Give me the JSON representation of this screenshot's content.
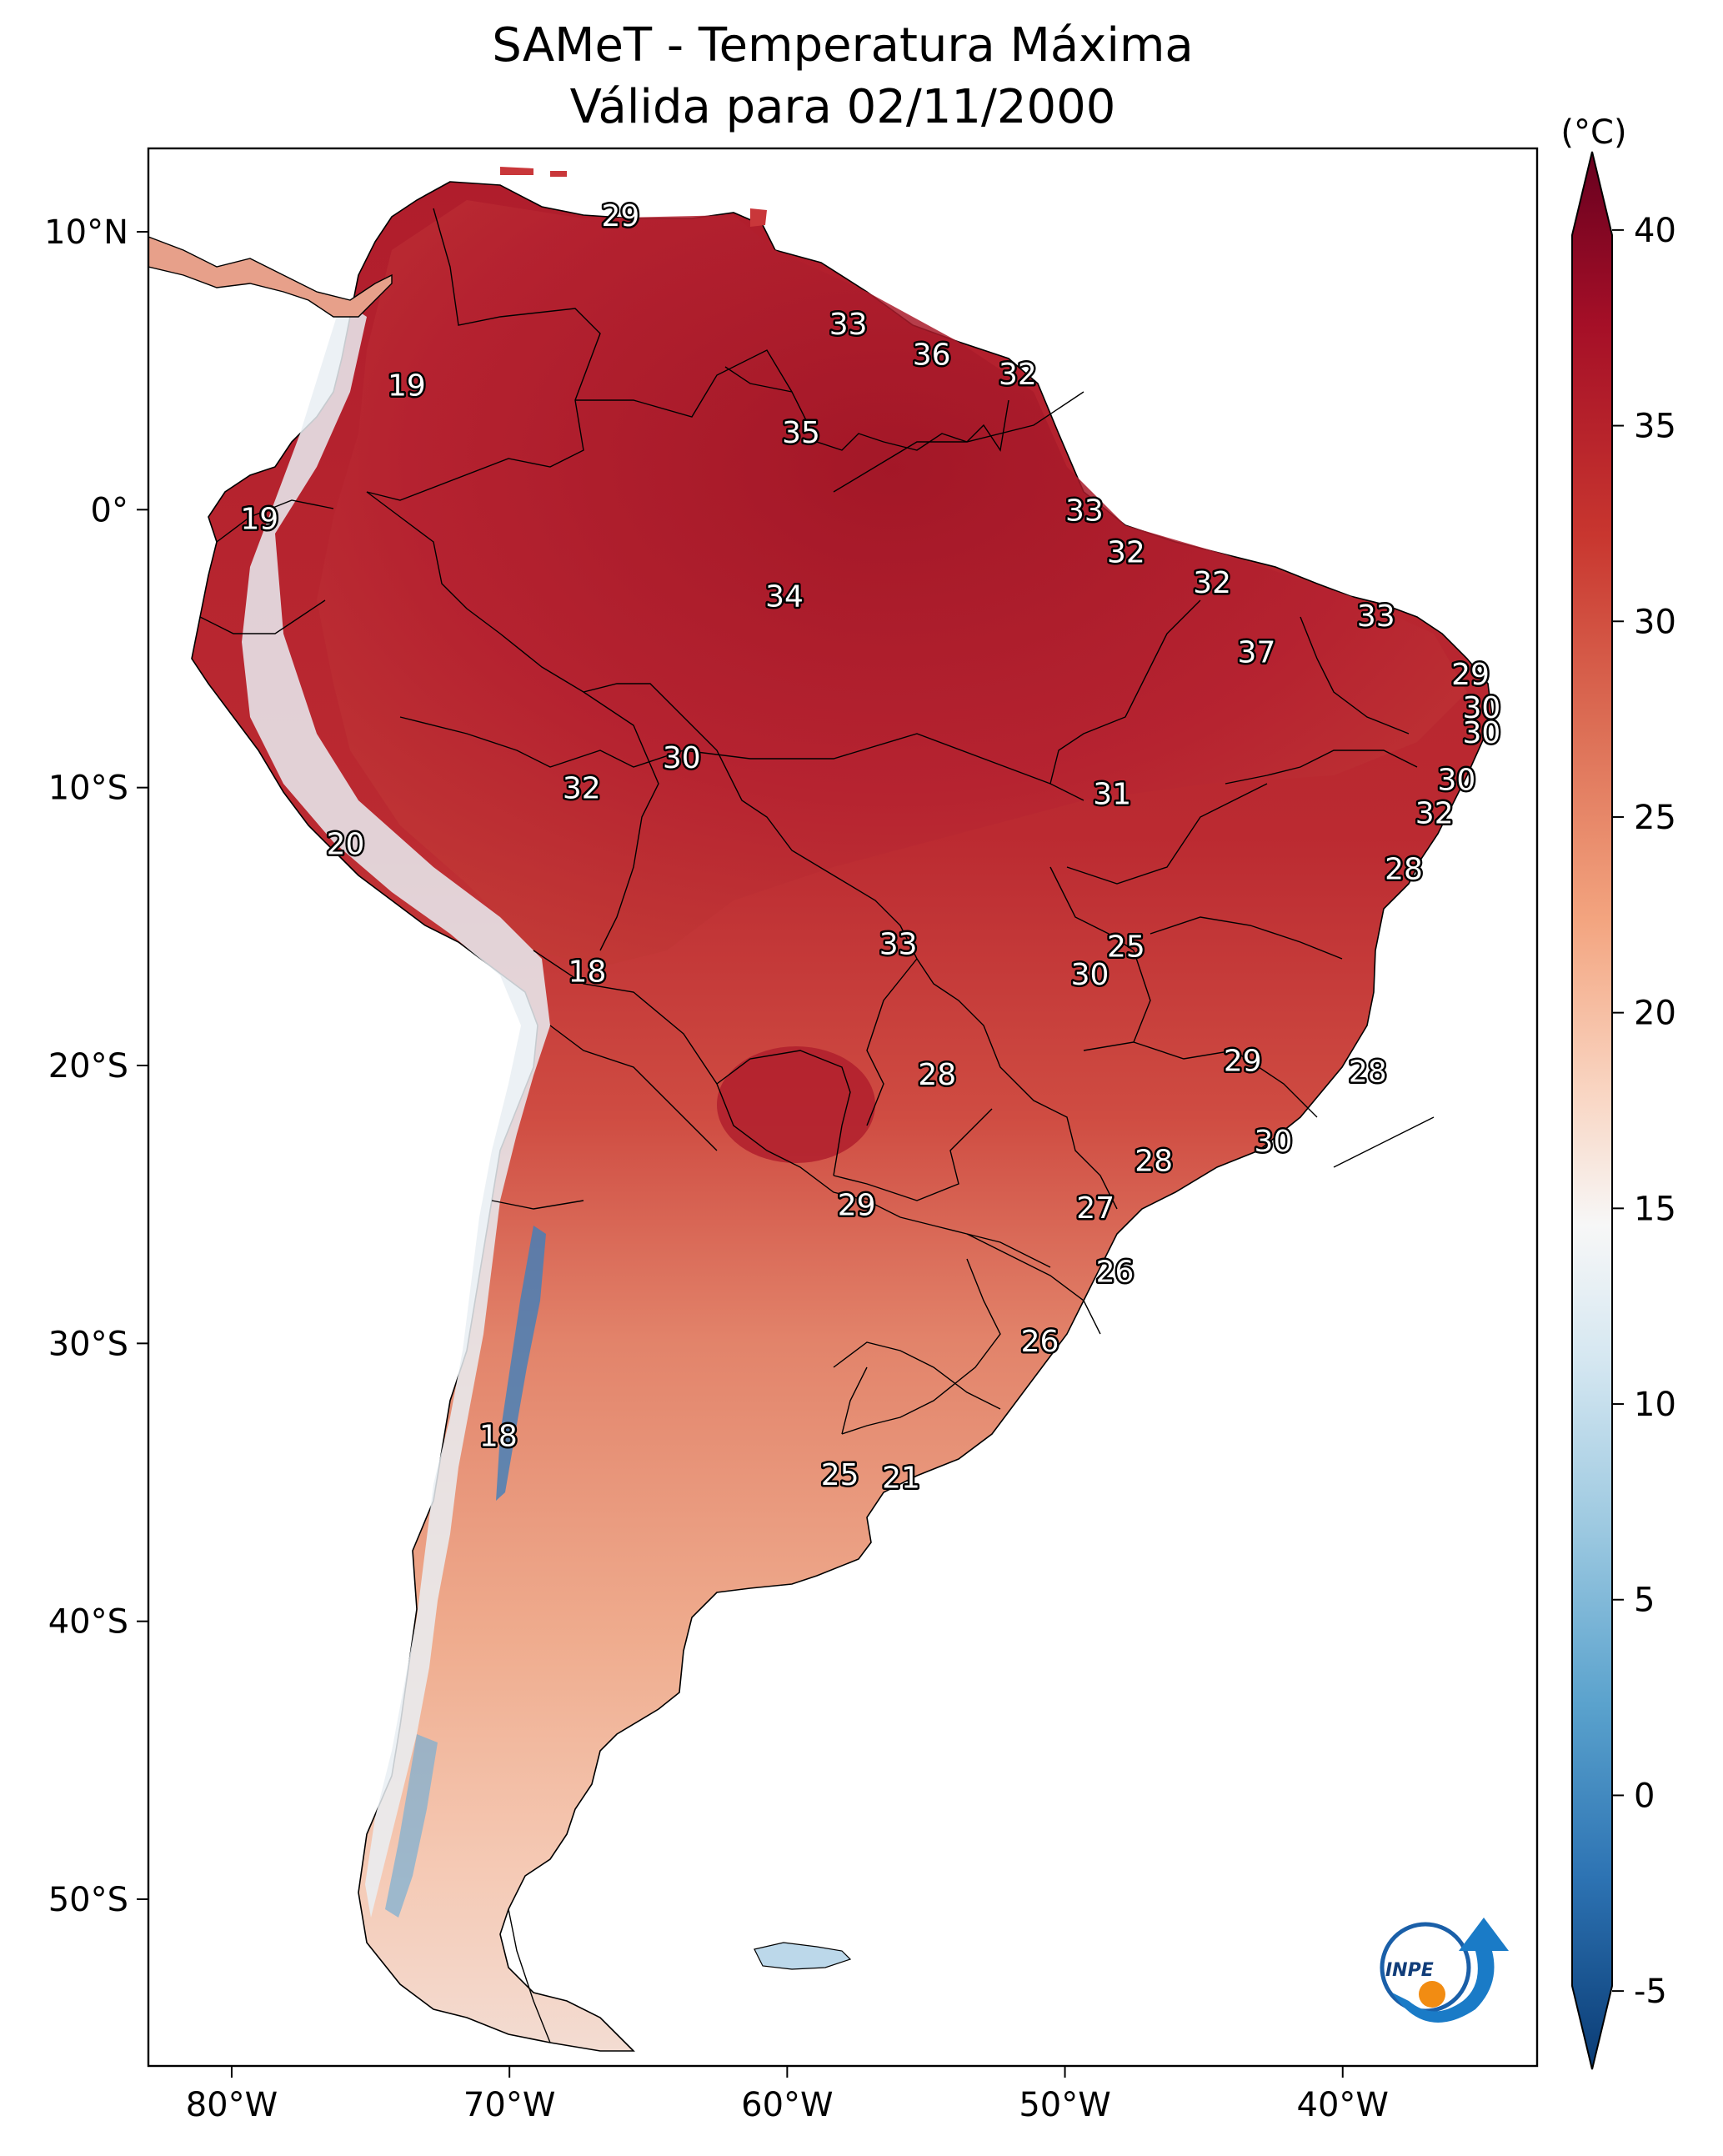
{
  "title": {
    "line1": "SAMeT - Temperatura Máxima",
    "line2": "Válida para 02/11/2000"
  },
  "map": {
    "lon_labels": [
      "80°W",
      "70°W",
      "60°W",
      "50°W",
      "40°W"
    ],
    "lat_labels": [
      "10°N",
      "0°",
      "10°S",
      "20°S",
      "30°S",
      "40°S",
      "50°S"
    ],
    "extent": {
      "lon_min": -83,
      "lon_max": -33,
      "lat_min": -56,
      "lat_max": 13
    }
  },
  "colorbar": {
    "unit": "(°C)",
    "ticks": [
      "40",
      "35",
      "30",
      "25",
      "20",
      "15",
      "10",
      "5",
      "0",
      "-5"
    ],
    "min": -7,
    "max": 42,
    "colors": [
      "#67001f",
      "#b2182b",
      "#d6604d",
      "#f4a582",
      "#fddbc7",
      "#f7f7f7",
      "#d1e5f0",
      "#92c5de",
      "#4393c3",
      "#2166ac",
      "#053061"
    ]
  },
  "temperature_labels": [
    {
      "value": "29",
      "lon": -66.0,
      "lat": 10.6
    },
    {
      "value": "19",
      "lon": -73.7,
      "lat": 4.5
    },
    {
      "value": "33",
      "lon": -57.8,
      "lat": 6.7
    },
    {
      "value": "36",
      "lon": -54.8,
      "lat": 5.6
    },
    {
      "value": "32",
      "lon": -51.7,
      "lat": 4.9
    },
    {
      "value": "35",
      "lon": -59.5,
      "lat": 2.8
    },
    {
      "value": "19",
      "lon": -79.0,
      "lat": -0.3
    },
    {
      "value": "33",
      "lon": -49.3,
      "lat": 0.0
    },
    {
      "value": "32",
      "lon": -47.8,
      "lat": -1.5
    },
    {
      "value": "34",
      "lon": -60.1,
      "lat": -3.1
    },
    {
      "value": "32",
      "lon": -44.7,
      "lat": -2.6
    },
    {
      "value": "33",
      "lon": -38.8,
      "lat": -3.8
    },
    {
      "value": "37",
      "lon": -43.1,
      "lat": -5.1
    },
    {
      "value": "29",
      "lon": -35.4,
      "lat": -5.9
    },
    {
      "value": "30",
      "lon": -35.0,
      "lat": -7.1
    },
    {
      "value": "30",
      "lon": -35.0,
      "lat": -8.0
    },
    {
      "value": "30",
      "lon": -63.8,
      "lat": -8.9
    },
    {
      "value": "32",
      "lon": -67.4,
      "lat": -10.0
    },
    {
      "value": "31",
      "lon": -48.3,
      "lat": -10.2
    },
    {
      "value": "30",
      "lon": -35.9,
      "lat": -9.7
    },
    {
      "value": "32",
      "lon": -36.7,
      "lat": -10.9
    },
    {
      "value": "20",
      "lon": -75.9,
      "lat": -12.0
    },
    {
      "value": "28",
      "lon": -37.8,
      "lat": -12.9
    },
    {
      "value": "33",
      "lon": -56.0,
      "lat": -15.6
    },
    {
      "value": "25",
      "lon": -47.8,
      "lat": -15.7
    },
    {
      "value": "18",
      "lon": -67.2,
      "lat": -16.6
    },
    {
      "value": "30",
      "lon": -49.1,
      "lat": -16.7
    },
    {
      "value": "29",
      "lon": -43.6,
      "lat": -19.8
    },
    {
      "value": "28",
      "lon": -54.6,
      "lat": -20.3
    },
    {
      "value": "28",
      "lon": -39.1,
      "lat": -20.2
    },
    {
      "value": "30",
      "lon": -42.5,
      "lat": -22.7
    },
    {
      "value": "28",
      "lon": -46.8,
      "lat": -23.4
    },
    {
      "value": "29",
      "lon": -57.5,
      "lat": -25.0
    },
    {
      "value": "27",
      "lon": -48.9,
      "lat": -25.1
    },
    {
      "value": "26",
      "lon": -48.2,
      "lat": -27.4
    },
    {
      "value": "26",
      "lon": -50.9,
      "lat": -29.9
    },
    {
      "value": "18",
      "lon": -70.4,
      "lat": -33.3
    },
    {
      "value": "25",
      "lon": -58.1,
      "lat": -34.7
    },
    {
      "value": "21",
      "lon": -55.9,
      "lat": -34.8
    }
  ],
  "logo": {
    "text": "INPE"
  }
}
